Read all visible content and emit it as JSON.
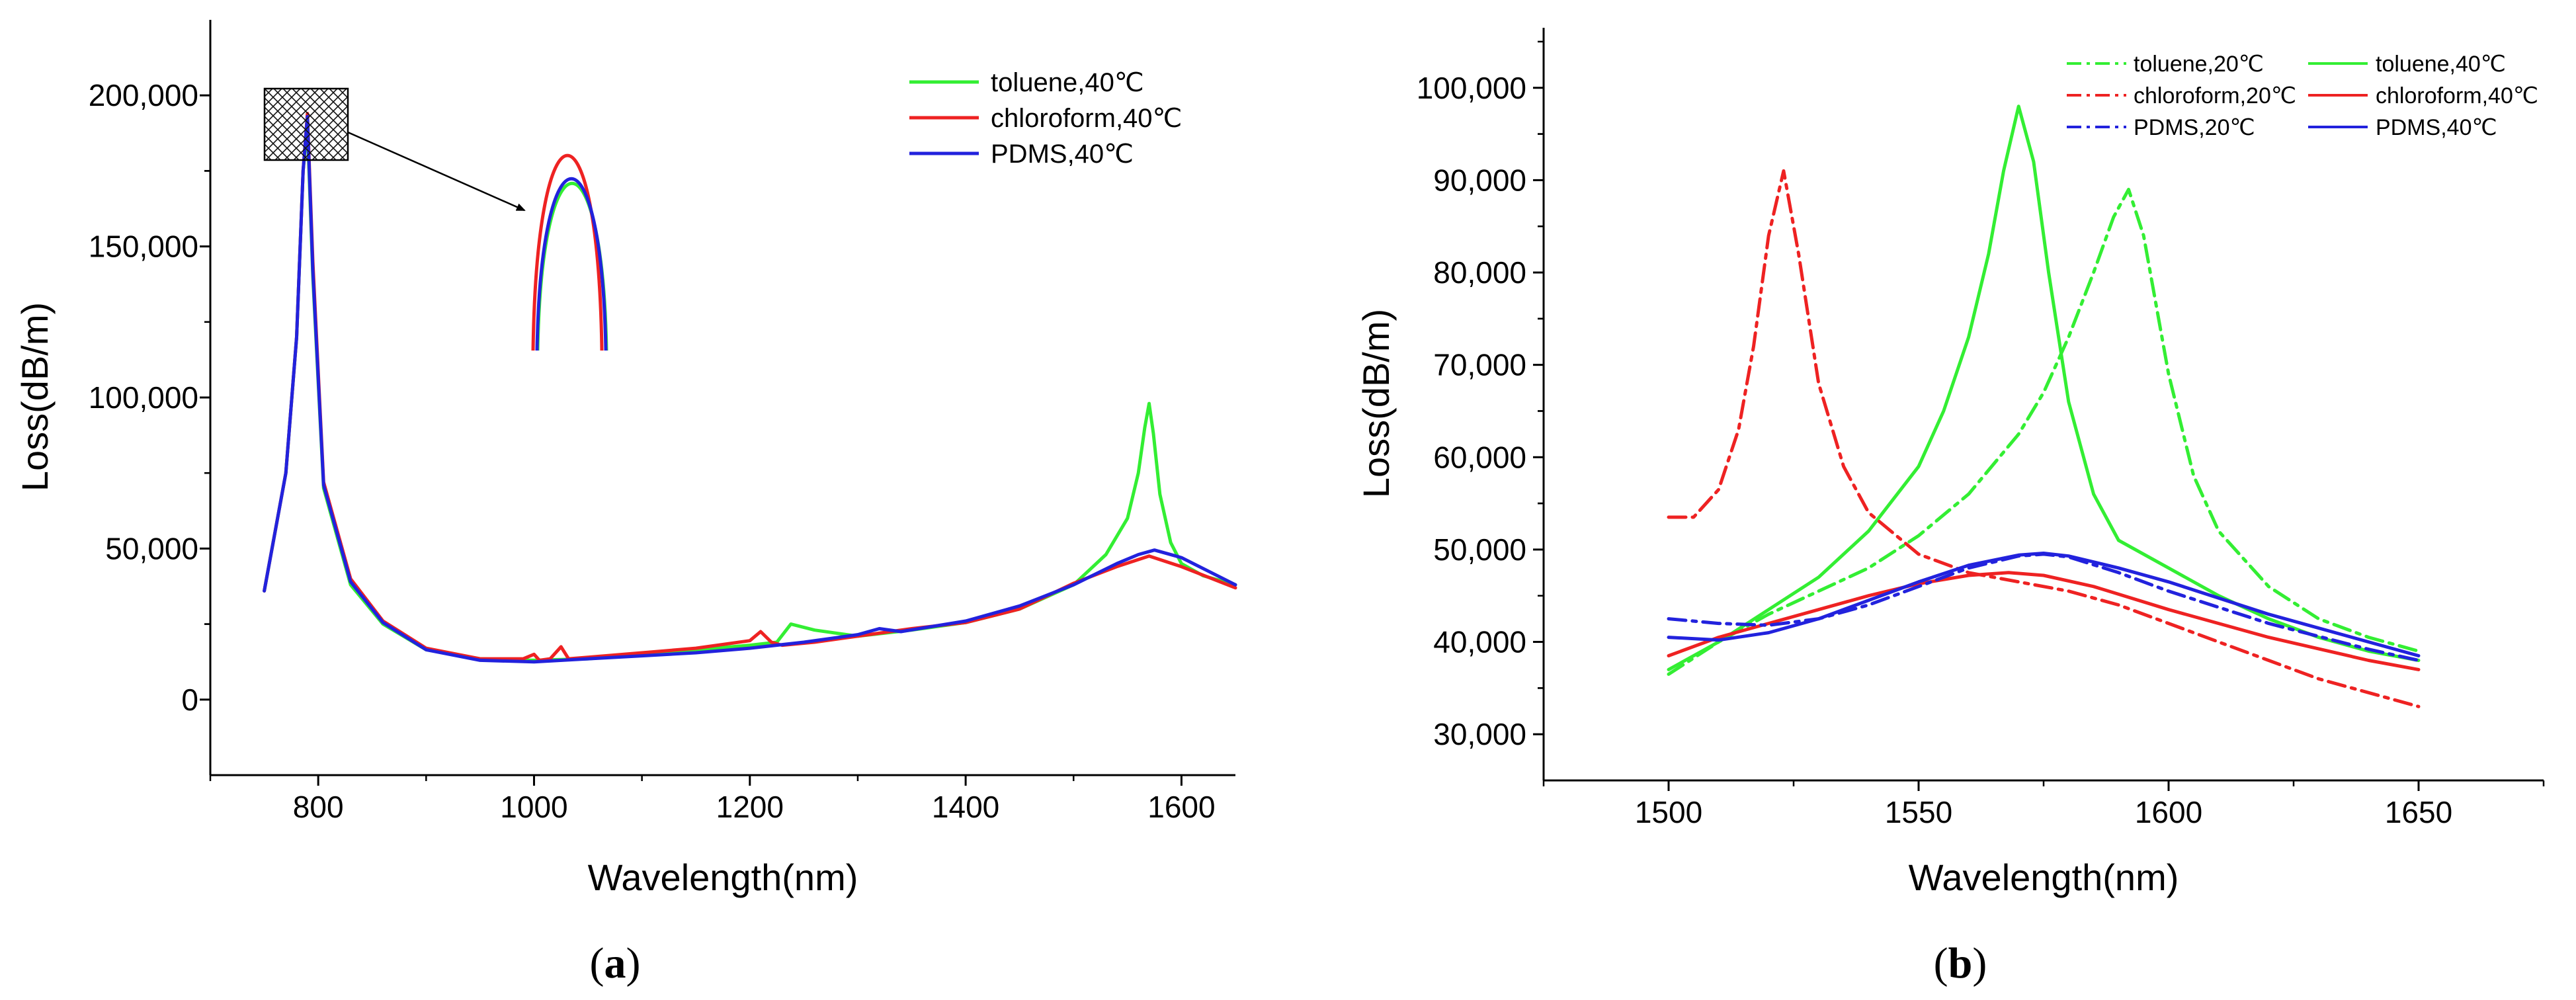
{
  "chart_data": [
    {
      "type": "line",
      "panel_label": {
        "open": "(",
        "letter": "a",
        "close": ")"
      },
      "xlabel": "Wavelength(nm)",
      "ylabel": "Loss(dB/m)",
      "xlim": [
        700,
        1650
      ],
      "ylim": [
        -25000,
        225000
      ],
      "xticks": [
        800,
        1000,
        1200,
        1400,
        1600
      ],
      "xtick_labels": [
        "800",
        "1000",
        "1200",
        "1400",
        "1600"
      ],
      "yticks": [
        0,
        50000,
        100000,
        150000,
        200000
      ],
      "ytick_labels": [
        "0",
        "50,000",
        "100,000",
        "150,000",
        "200,000"
      ],
      "legend": {
        "position": "top-right",
        "entries": [
          "toluene,40℃",
          "chloroform,40℃",
          "PDMS,40℃"
        ]
      },
      "series": [
        {
          "name": "toluene,40℃",
          "color": "#33ee33",
          "style": "solid",
          "x": [
            750,
            770,
            780,
            786,
            790,
            795,
            805,
            830,
            860,
            900,
            950,
            1000,
            1050,
            1100,
            1150,
            1200,
            1225,
            1238,
            1260,
            1300,
            1350,
            1400,
            1450,
            1500,
            1530,
            1550,
            1560,
            1566,
            1570,
            1574,
            1580,
            1590,
            1600,
            1620,
            1650
          ],
          "y": [
            36000,
            75000,
            120000,
            175000,
            190000,
            140000,
            70000,
            38000,
            25000,
            16500,
            13500,
            13000,
            13500,
            15000,
            16500,
            18000,
            19000,
            25000,
            23000,
            21000,
            23000,
            25500,
            30000,
            38000,
            48000,
            60000,
            75000,
            90000,
            98000,
            88000,
            68000,
            52000,
            45000,
            41000,
            38000
          ]
        },
        {
          "name": "chloroform,40℃",
          "color": "#ee2222",
          "style": "solid",
          "x": [
            750,
            770,
            780,
            786,
            790,
            795,
            805,
            830,
            860,
            900,
            950,
            990,
            1000,
            1005,
            1015,
            1025,
            1032,
            1050,
            1100,
            1150,
            1200,
            1210,
            1220,
            1230,
            1260,
            1300,
            1350,
            1400,
            1450,
            1500,
            1540,
            1570,
            1600,
            1650
          ],
          "y": [
            36000,
            75000,
            120000,
            175000,
            194000,
            145000,
            72000,
            40000,
            26000,
            17000,
            13500,
            13500,
            15000,
            13000,
            13500,
            17500,
            13500,
            14000,
            15500,
            17000,
            19500,
            22500,
            19000,
            18000,
            19000,
            21000,
            23500,
            25500,
            30000,
            38500,
            44000,
            47500,
            44000,
            37000
          ]
        },
        {
          "name": "PDMS,40℃",
          "color": "#2222dd",
          "style": "solid",
          "x": [
            750,
            770,
            780,
            786,
            790,
            795,
            805,
            830,
            860,
            900,
            950,
            1000,
            1050,
            1100,
            1150,
            1200,
            1250,
            1300,
            1320,
            1340,
            1400,
            1450,
            1500,
            1540,
            1560,
            1575,
            1600,
            1650
          ],
          "y": [
            36000,
            75000,
            120000,
            175000,
            193000,
            142000,
            71000,
            39000,
            25500,
            16500,
            13000,
            12500,
            13500,
            14500,
            15500,
            17000,
            19000,
            21500,
            23500,
            22500,
            26000,
            31000,
            38000,
            45000,
            48000,
            49500,
            47000,
            38000
          ]
        }
      ],
      "inset_curves": [
        {
          "series": "toluene,40℃",
          "peak": 0.72
        },
        {
          "series": "chloroform,40℃",
          "peak": 0.84
        },
        {
          "series": "PDMS,40℃",
          "peak": 0.74
        }
      ]
    },
    {
      "type": "line",
      "panel_label": {
        "open": "(",
        "letter": "b",
        "close": ")"
      },
      "xlabel": "Wavelength(nm)",
      "ylabel": "Loss(dB/m)",
      "xlim": [
        1475,
        1675
      ],
      "ylim": [
        25000,
        106500
      ],
      "xticks": [
        1500,
        1550,
        1600,
        1650
      ],
      "xtick_labels": [
        "1500",
        "1550",
        "1600",
        "1650"
      ],
      "yticks": [
        30000,
        40000,
        50000,
        60000,
        70000,
        80000,
        90000,
        100000
      ],
      "ytick_labels": [
        "30,000",
        "40,000",
        "50,000",
        "60,000",
        "70,000",
        "80,000",
        "90,000",
        "100,000"
      ],
      "legend": {
        "position": "top-right",
        "entries": [
          "toluene,20℃",
          "toluene,40℃",
          "chloroform,20℃",
          "chloroform,40℃",
          "PDMS,20℃",
          "PDMS,40℃"
        ]
      },
      "series": [
        {
          "name": "toluene,20℃",
          "color": "#33ee33",
          "style": "dashdot",
          "x": [
            1500,
            1510,
            1520,
            1530,
            1540,
            1550,
            1560,
            1570,
            1575,
            1580,
            1585,
            1589,
            1592,
            1595,
            1600,
            1605,
            1610,
            1620,
            1630,
            1640,
            1650
          ],
          "y": [
            36500,
            40000,
            43000,
            45500,
            48000,
            51500,
            56000,
            62500,
            67000,
            73000,
            80000,
            86000,
            89000,
            84000,
            69000,
            58000,
            52000,
            46000,
            42500,
            40500,
            39000
          ]
        },
        {
          "name": "toluene,40℃",
          "color": "#33ee33",
          "style": "solid",
          "x": [
            1500,
            1510,
            1520,
            1530,
            1540,
            1550,
            1555,
            1560,
            1564,
            1567,
            1570,
            1573,
            1576,
            1580,
            1585,
            1590,
            1600,
            1610,
            1620,
            1630,
            1640,
            1650
          ],
          "y": [
            37000,
            40000,
            43500,
            47000,
            52000,
            59000,
            65000,
            73000,
            82000,
            91000,
            98000,
            92000,
            80000,
            66000,
            56000,
            51000,
            48000,
            45000,
            42500,
            40500,
            39000,
            38000
          ]
        },
        {
          "name": "chloroform,20℃",
          "color": "#ee2222",
          "style": "dashdot",
          "x": [
            1500,
            1505,
            1510,
            1514,
            1517,
            1520,
            1523,
            1526,
            1530,
            1535,
            1540,
            1550,
            1560,
            1570,
            1580,
            1590,
            1600,
            1610,
            1620,
            1630,
            1640,
            1650
          ],
          "y": [
            53500,
            53500,
            56500,
            63000,
            72000,
            84000,
            91000,
            82000,
            68000,
            59000,
            54000,
            49500,
            47500,
            46500,
            45500,
            44000,
            42000,
            40000,
            38000,
            36000,
            34500,
            33000
          ]
        },
        {
          "name": "chloroform,40℃",
          "color": "#ee2222",
          "style": "solid",
          "x": [
            1500,
            1510,
            1520,
            1530,
            1540,
            1550,
            1560,
            1568,
            1575,
            1585,
            1600,
            1620,
            1640,
            1650
          ],
          "y": [
            38500,
            40500,
            42000,
            43500,
            45000,
            46300,
            47200,
            47500,
            47200,
            46000,
            43500,
            40500,
            38000,
            37000
          ]
        },
        {
          "name": "PDMS,20℃",
          "color": "#2222dd",
          "style": "dashdot",
          "x": [
            1500,
            1510,
            1520,
            1530,
            1540,
            1550,
            1560,
            1570,
            1575,
            1580,
            1590,
            1600,
            1620,
            1640,
            1650
          ],
          "y": [
            42500,
            42000,
            41800,
            42500,
            44000,
            46000,
            48000,
            49300,
            49500,
            49200,
            47500,
            45500,
            42000,
            39200,
            38000
          ]
        },
        {
          "name": "PDMS,40℃",
          "color": "#2222dd",
          "style": "solid",
          "x": [
            1500,
            1510,
            1520,
            1530,
            1540,
            1550,
            1560,
            1570,
            1575,
            1580,
            1590,
            1600,
            1620,
            1640,
            1650
          ],
          "y": [
            40500,
            40200,
            41000,
            42500,
            44500,
            46500,
            48300,
            49400,
            49600,
            49300,
            48000,
            46500,
            43000,
            40000,
            38500
          ]
        }
      ]
    }
  ]
}
